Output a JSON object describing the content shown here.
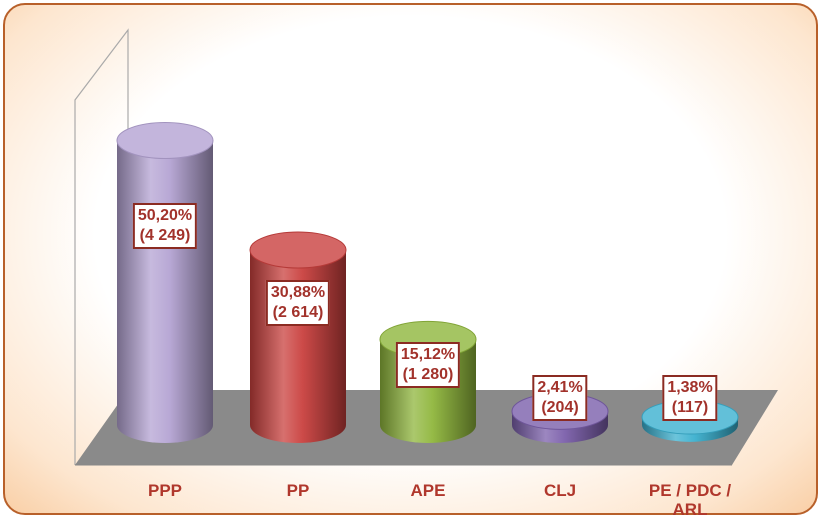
{
  "chart_data": {
    "type": "bar3d",
    "categories": [
      "PPP",
      "PP",
      "APE",
      "CLJ",
      "PE / PDC / ARL"
    ],
    "values": [
      50.2,
      30.88,
      15.12,
      2.41,
      1.38
    ],
    "value_labels": [
      "50,20%",
      "30,88%",
      "15,12%",
      "2,41%",
      "1,38%"
    ],
    "count_labels": [
      "(4 249)",
      "(2 614)",
      "(1 280)",
      "(204)",
      "(117)"
    ],
    "colors": [
      "#b4a3d3",
      "#c9403e",
      "#8fb63c",
      "#7b5fab",
      "#3bb0cf"
    ],
    "ylim": [
      0,
      60
    ]
  }
}
